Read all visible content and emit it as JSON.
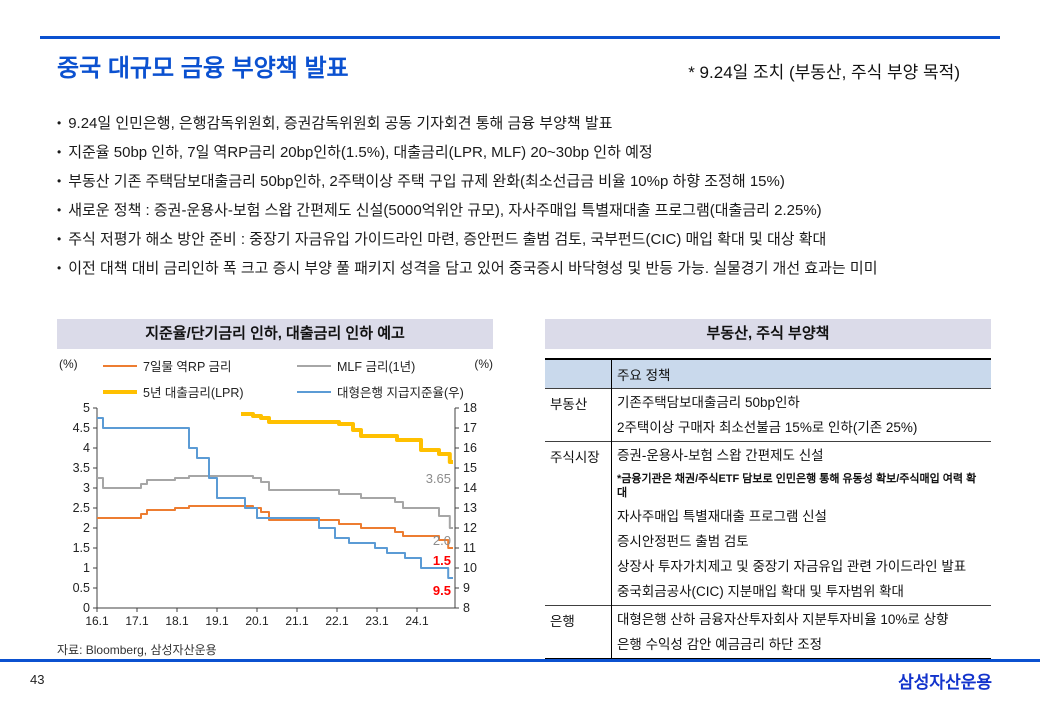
{
  "header": {
    "title": "중국 대규모 금융 부양책 발표",
    "annotation": "* 9.24일 조치 (부동산, 주식 부양 목적)"
  },
  "bullets": [
    "9.24일 인민은행, 은행감독위원회,  증권감독위원회  공동 기자회견 통해 금융 부양책 발표",
    "지준율 50bp 인하, 7일 역RP금리 20bp인하(1.5%), 대출금리(LPR,  MLF) 20~30bp 인하 예정",
    "부동산 기존 주택담보대출금리  50bp인하, 2주택이상  주택 구입 규제 완화(최소선급금  비율 10%p 하향 조정해 15%)",
    "새로운 정책 : 증권-운용사-보험  스왑 간편제도  신설(5000억위안  규모), 자사주매입  특별재대출  프로그램(대출금리  2.25%)",
    "주식 저평가 해소 방안 준비 : 중장기 자금유입  가이드라인  마련, 증안펀드  출범 검토, 국부펀드(CIC)  매입 확대 및 대상 확대",
    "이전 대책 대비 금리인하  폭 크고 증시 부양 풀 패키지 성격을 담고 있어 중국증시  바닥형성  및 반등 가능. 실물경기  개선 효과는  미미"
  ],
  "chart_data": {
    "type": "line",
    "title": "지준율/단기금리  인하,  대출금리  인하 예고",
    "unit_left": "(%)",
    "unit_right": "(%)",
    "x_range": [
      2016.0,
      2024.95
    ],
    "x_tick_labels": [
      "16.1",
      "17.1",
      "18.1",
      "19.1",
      "20.1",
      "21.1",
      "22.1",
      "23.1",
      "24.1"
    ],
    "x_tick_values": [
      2016,
      2017,
      2018,
      2019,
      2020,
      2021,
      2022,
      2023,
      2024
    ],
    "left_axis": {
      "min": 0,
      "max": 5,
      "step": 0.5
    },
    "right_axis": {
      "min": 8,
      "max": 18,
      "step": 1
    },
    "grid": false,
    "legend_position": "top",
    "series": [
      {
        "name": "7일물 역RP 금리",
        "color": "#ED7D31",
        "axis": "left",
        "width": 2,
        "points": [
          [
            2016.0,
            2.25
          ],
          [
            2017.1,
            2.35
          ],
          [
            2017.25,
            2.45
          ],
          [
            2017.95,
            2.5
          ],
          [
            2018.3,
            2.55
          ],
          [
            2019.9,
            2.5
          ],
          [
            2020.1,
            2.4
          ],
          [
            2020.3,
            2.2
          ],
          [
            2022.05,
            2.1
          ],
          [
            2022.6,
            2.0
          ],
          [
            2023.45,
            1.9
          ],
          [
            2023.65,
            1.8
          ],
          [
            2024.55,
            1.7
          ],
          [
            2024.78,
            1.5
          ],
          [
            2024.9,
            1.5
          ]
        ]
      },
      {
        "name": "MLF 금리(1년)",
        "color": "#A6A6A6",
        "axis": "left",
        "width": 2,
        "points": [
          [
            2016.0,
            3.25
          ],
          [
            2016.15,
            3.0
          ],
          [
            2017.1,
            3.1
          ],
          [
            2017.25,
            3.2
          ],
          [
            2017.95,
            3.25
          ],
          [
            2018.3,
            3.3
          ],
          [
            2019.9,
            3.25
          ],
          [
            2020.1,
            3.15
          ],
          [
            2020.3,
            2.95
          ],
          [
            2022.05,
            2.85
          ],
          [
            2022.6,
            2.75
          ],
          [
            2023.45,
            2.65
          ],
          [
            2023.65,
            2.5
          ],
          [
            2024.55,
            2.3
          ],
          [
            2024.82,
            2.0
          ],
          [
            2024.9,
            2.0
          ]
        ]
      },
      {
        "name": "5년 대출금리(LPR)",
        "color": "#FFC000",
        "axis": "left",
        "width": 4,
        "points": [
          [
            2019.6,
            4.85
          ],
          [
            2019.9,
            4.8
          ],
          [
            2020.1,
            4.75
          ],
          [
            2020.3,
            4.65
          ],
          [
            2022.05,
            4.6
          ],
          [
            2022.4,
            4.45
          ],
          [
            2022.6,
            4.3
          ],
          [
            2023.5,
            4.2
          ],
          [
            2024.1,
            3.95
          ],
          [
            2024.55,
            3.85
          ],
          [
            2024.82,
            3.65
          ],
          [
            2024.9,
            3.65
          ]
        ]
      },
      {
        "name": "대형은행 지급지준율(우)",
        "color": "#5B9BD5",
        "axis": "right",
        "width": 2,
        "points": [
          [
            2016.0,
            17.5
          ],
          [
            2016.15,
            17.0
          ],
          [
            2018.3,
            16.0
          ],
          [
            2018.5,
            15.5
          ],
          [
            2018.8,
            14.5
          ],
          [
            2019.0,
            13.5
          ],
          [
            2019.7,
            13.0
          ],
          [
            2020.0,
            12.5
          ],
          [
            2021.55,
            12.0
          ],
          [
            2021.95,
            11.5
          ],
          [
            2022.3,
            11.25
          ],
          [
            2022.95,
            11.0
          ],
          [
            2023.25,
            10.75
          ],
          [
            2023.7,
            10.5
          ],
          [
            2024.1,
            10.0
          ],
          [
            2024.78,
            9.5
          ],
          [
            2024.9,
            9.5
          ]
        ]
      }
    ],
    "end_labels": [
      {
        "text": "3.65",
        "color": "#8c8c8c",
        "bold": false,
        "axis": "right",
        "level": 14.45
      },
      {
        "text": "2.0",
        "color": "#8c8c8c",
        "bold": false,
        "axis": "right",
        "level": 11.35
      },
      {
        "text": "1.5",
        "color": "#ff0000",
        "bold": true,
        "axis": "right",
        "level": 10.35
      },
      {
        "text": "9.5",
        "color": "#ff0000",
        "bold": true,
        "axis": "right",
        "level": 8.85
      }
    ],
    "source": "자료: Bloomberg, 삼성자산운용"
  },
  "policy_table": {
    "title": "부동산, 주식 부양책",
    "header": "주요 정책",
    "groups": [
      {
        "category": "부동산",
        "items": [
          {
            "text": "기존주택담보대출금리 50bp인하",
            "note": false
          },
          {
            "text": "2주택이상 구매자 최소선불금 15%로  인하(기존 25%)",
            "note": false
          }
        ]
      },
      {
        "category": "주식시장",
        "items": [
          {
            "text": "증권-운용사-보험 스왑 간편제도 신설",
            "note": false
          },
          {
            "text": "*금융기관은 채권/주식ETF 담보로 인민은행 통해 유동성 확보/주식매입 여력 확대",
            "note": true
          },
          {
            "text": "자사주매입 특별재대출 프로그램 신설",
            "note": false
          },
          {
            "text": "증시안정펀드 출범 검토",
            "note": false
          },
          {
            "text": "상장사 투자가치제고 및 중장기 자금유입 관련 가이드라인 발표",
            "note": false
          },
          {
            "text": "중국회금공사(CIC) 지분매입 확대 및 투자범위 확대",
            "note": false
          }
        ]
      },
      {
        "category": "은행",
        "items": [
          {
            "text": "대형은행 산하 금융자산투자회사 지분투자비율 10%로 상향",
            "note": false
          },
          {
            "text": "은행 수익성 감안 예금금리 하단 조정",
            "note": false
          }
        ]
      }
    ]
  },
  "footer": {
    "page": "43",
    "logo": "삼성자산운용"
  },
  "colors": {
    "accent_blue": "#0b51d0",
    "logo_blue": "#1233cc",
    "panel_title_bg": "#dbdbe9",
    "table_header_bg": "#c9d9ec",
    "series_orange": "#ED7D31",
    "series_gray": "#A6A6A6",
    "series_yellow": "#FFC000",
    "series_blue": "#5B9BD5",
    "end_label_red": "#ff0000"
  }
}
